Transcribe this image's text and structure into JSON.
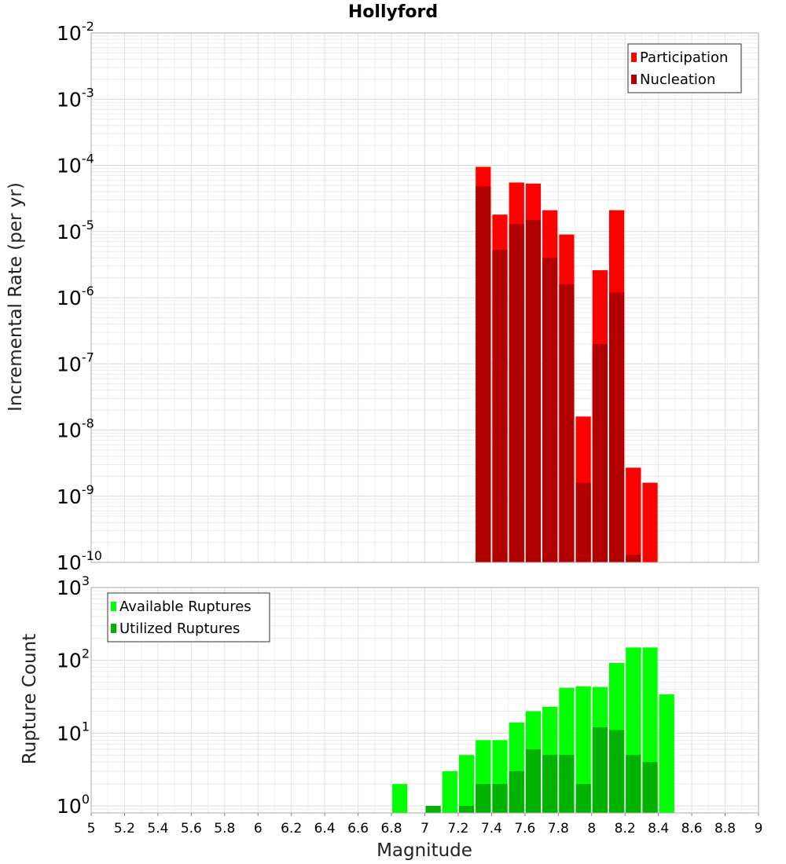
{
  "chart_data": [
    {
      "type": "bar",
      "title": "Hollyford",
      "xlabel": "",
      "ylabel": "Incremental Rate (per yr)",
      "yscale": "log",
      "ylim": [
        1e-10,
        0.01
      ],
      "xlim": [
        5,
        9
      ],
      "bin_width": 0.1,
      "legend_position": "top-right",
      "grid": true,
      "yticks": [
        {
          "base": "10",
          "exp": "-10"
        },
        {
          "base": "10",
          "exp": "-9"
        },
        {
          "base": "10",
          "exp": "-8"
        },
        {
          "base": "10",
          "exp": "-7"
        },
        {
          "base": "10",
          "exp": "-6"
        },
        {
          "base": "10",
          "exp": "-5"
        },
        {
          "base": "10",
          "exp": "-4"
        },
        {
          "base": "10",
          "exp": "-3"
        },
        {
          "base": "10",
          "exp": "-2"
        }
      ],
      "x": [
        7.35,
        7.45,
        7.55,
        7.65,
        7.75,
        7.85,
        7.95,
        8.05,
        8.15,
        8.25,
        8.35
      ],
      "series": [
        {
          "name": "Participation",
          "color": "#ff0000",
          "values": [
            9.5e-05,
            1.8e-05,
            5.5e-05,
            5.3e-05,
            2.1e-05,
            9e-06,
            1.6e-08,
            2.6e-06,
            2.1e-05,
            2.7e-09,
            1.6e-09
          ]
        },
        {
          "name": "Nucleation",
          "color": "#b20000",
          "values": [
            4.8e-05,
            5.3e-06,
            1.3e-05,
            1.5e-05,
            4e-06,
            1.6e-06,
            1.6e-09,
            2e-07,
            1.2e-06,
            1.3e-10,
            null
          ]
        }
      ]
    },
    {
      "type": "bar",
      "title": "",
      "xlabel": "Magnitude",
      "ylabel": "Rupture Count",
      "yscale": "log",
      "ylim": [
        0.8,
        1000
      ],
      "xlim": [
        5,
        9
      ],
      "bin_width": 0.1,
      "legend_position": "top-left",
      "grid": true,
      "yticks": [
        {
          "base": "10",
          "exp": "0",
          "value": 1
        },
        {
          "base": "10",
          "exp": "1",
          "value": 10
        },
        {
          "base": "10",
          "exp": "2",
          "value": 100
        },
        {
          "base": "10",
          "exp": "3",
          "value": 1000
        }
      ],
      "xticks": [
        "5",
        "5.2",
        "5.4",
        "5.6",
        "5.8",
        "6",
        "6.2",
        "6.4",
        "6.6",
        "6.8",
        "7",
        "7.2",
        "7.4",
        "7.6",
        "7.8",
        "8",
        "8.2",
        "8.4",
        "8.6",
        "8.8",
        "9"
      ],
      "x": [
        6.85,
        7.05,
        7.15,
        7.25,
        7.35,
        7.45,
        7.55,
        7.65,
        7.75,
        7.85,
        7.95,
        8.05,
        8.15,
        8.25,
        8.35,
        8.45
      ],
      "series": [
        {
          "name": "Available Ruptures",
          "color": "#00ff00",
          "values": [
            2,
            null,
            3,
            5,
            8,
            8,
            14,
            20,
            23,
            42,
            44,
            43,
            92,
            150,
            150,
            34
          ]
        },
        {
          "name": "Utilized Ruptures",
          "color": "#00b200",
          "values": [
            null,
            1,
            null,
            1,
            2,
            2,
            3,
            6,
            5,
            5,
            2,
            12,
            11,
            5,
            4,
            null
          ]
        }
      ]
    }
  ]
}
